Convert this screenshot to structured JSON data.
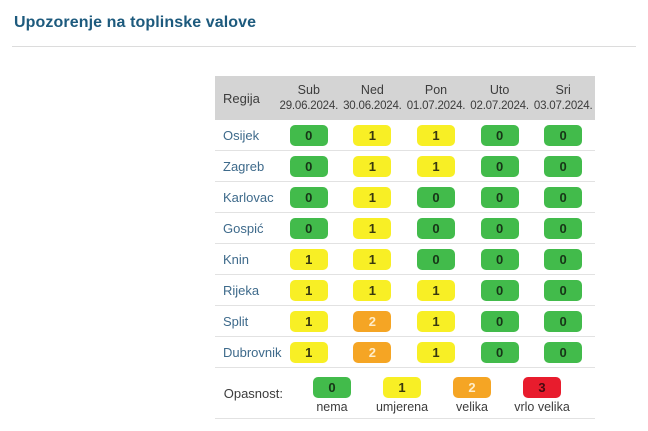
{
  "page": {
    "title": "Upozorenje na toplinske valove"
  },
  "table": {
    "region_header": "Regija",
    "days": [
      {
        "day": "Sub",
        "date": "29.06.2024."
      },
      {
        "day": "Ned",
        "date": "30.06.2024."
      },
      {
        "day": "Pon",
        "date": "01.07.2024."
      },
      {
        "day": "Uto",
        "date": "02.07.2024."
      },
      {
        "day": "Sri",
        "date": "03.07.2024."
      }
    ]
  },
  "chart_data": {
    "type": "heatmap",
    "title": "Upozorenje na toplinske valove",
    "rows": [
      "Osijek",
      "Zagreb",
      "Karlovac",
      "Gospić",
      "Knin",
      "Rijeka",
      "Split",
      "Dubrovnik"
    ],
    "columns": [
      "Sub 29.06.2024.",
      "Ned 30.06.2024.",
      "Pon 01.07.2024.",
      "Uto 02.07.2024.",
      "Sri 03.07.2024."
    ],
    "values": [
      [
        0,
        1,
        1,
        0,
        0
      ],
      [
        0,
        1,
        1,
        0,
        0
      ],
      [
        0,
        1,
        0,
        0,
        0
      ],
      [
        0,
        1,
        0,
        0,
        0
      ],
      [
        1,
        1,
        0,
        0,
        0
      ],
      [
        1,
        1,
        1,
        0,
        0
      ],
      [
        1,
        2,
        1,
        0,
        0
      ],
      [
        1,
        2,
        1,
        0,
        0
      ]
    ],
    "value_range": [
      0,
      3
    ],
    "scale_labels": {
      "0": "nema",
      "1": "umjerena",
      "2": "velika",
      "3": "vrlo velika"
    },
    "legend_position": "bottom"
  },
  "legend": {
    "label": "Opasnost:",
    "items": [
      {
        "value": 0,
        "label": "nema"
      },
      {
        "value": 1,
        "label": "umjerena"
      },
      {
        "value": 2,
        "label": "velika"
      },
      {
        "value": 3,
        "label": "vrlo velika"
      }
    ]
  },
  "levels": {
    "0": {
      "bg": "#42bb4b",
      "fg": "#173517"
    },
    "1": {
      "bg": "#f8ef25",
      "fg": "#38380f"
    },
    "2": {
      "bg": "#f5a524",
      "fg": "#ffedc9"
    },
    "3": {
      "bg": "#e81c2d",
      "fg": "#460a10"
    }
  },
  "colors": {
    "title": "#1d5a7d",
    "header_bg": "#d4d4d4",
    "region_text": "#3e6a8b",
    "divider": "#dcdcdc"
  }
}
